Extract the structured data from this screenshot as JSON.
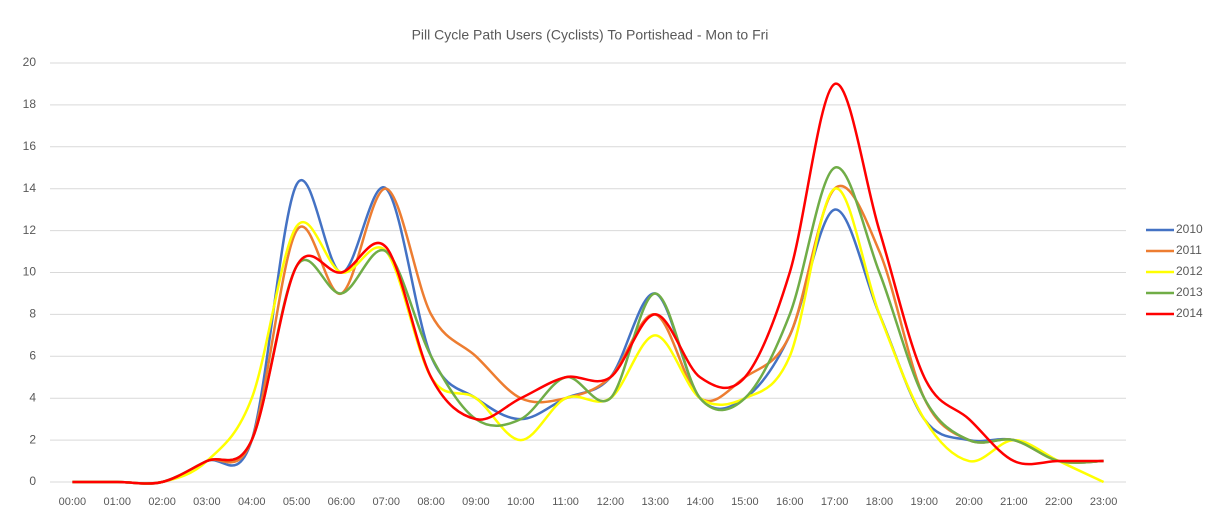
{
  "chart_data": {
    "type": "line",
    "title": "Pill Cycle Path Users (Cyclists) To Portishead - Mon to Fri",
    "categories": [
      "00:00",
      "01:00",
      "02:00",
      "03:00",
      "04:00",
      "05:00",
      "06:00",
      "07:00",
      "08:00",
      "09:00",
      "10:00",
      "11:00",
      "12:00",
      "13:00",
      "14:00",
      "15:00",
      "16:00",
      "17:00",
      "18:00",
      "19:00",
      "20:00",
      "21:00",
      "22:00",
      "23:00"
    ],
    "series": [
      {
        "name": "2010",
        "color": "#4472c4",
        "values": [
          0,
          0,
          0,
          1,
          2,
          14.2,
          10,
          14,
          6,
          4,
          3,
          4,
          5,
          9,
          4,
          4,
          7,
          13,
          8,
          3,
          2,
          2,
          1,
          1
        ]
      },
      {
        "name": "2011",
        "color": "#ed7d31",
        "values": [
          0,
          0,
          0,
          1,
          2,
          12,
          9,
          14,
          8,
          6,
          4,
          4,
          5,
          8,
          4,
          5,
          7,
          14,
          11,
          4,
          2,
          2,
          1,
          1
        ]
      },
      {
        "name": "2012",
        "color": "#ffff00",
        "values": [
          0,
          0,
          0,
          1,
          4,
          12.2,
          10,
          11,
          5,
          4,
          2,
          4,
          4,
          7,
          4,
          4,
          6,
          14,
          8,
          3,
          1,
          2,
          1,
          0
        ]
      },
      {
        "name": "2013",
        "color": "#70ad47",
        "values": [
          0,
          0,
          0,
          1,
          2,
          10.3,
          9,
          11,
          6,
          3,
          3,
          5,
          4,
          9,
          4,
          4,
          8,
          15,
          10,
          4,
          2,
          2,
          1,
          1
        ]
      },
      {
        "name": "2014",
        "color": "#ff0000",
        "values": [
          0,
          0,
          0,
          1,
          2,
          10.3,
          10,
          11.2,
          5,
          3,
          4,
          5,
          5,
          8,
          5,
          5,
          10,
          19,
          12,
          5,
          3,
          1,
          1,
          1
        ]
      }
    ],
    "ylim": [
      0,
      20
    ],
    "yticks": [
      0,
      2,
      4,
      6,
      8,
      10,
      12,
      14,
      16,
      18,
      20
    ],
    "grid": true,
    "smooth": true,
    "legend": "right"
  }
}
